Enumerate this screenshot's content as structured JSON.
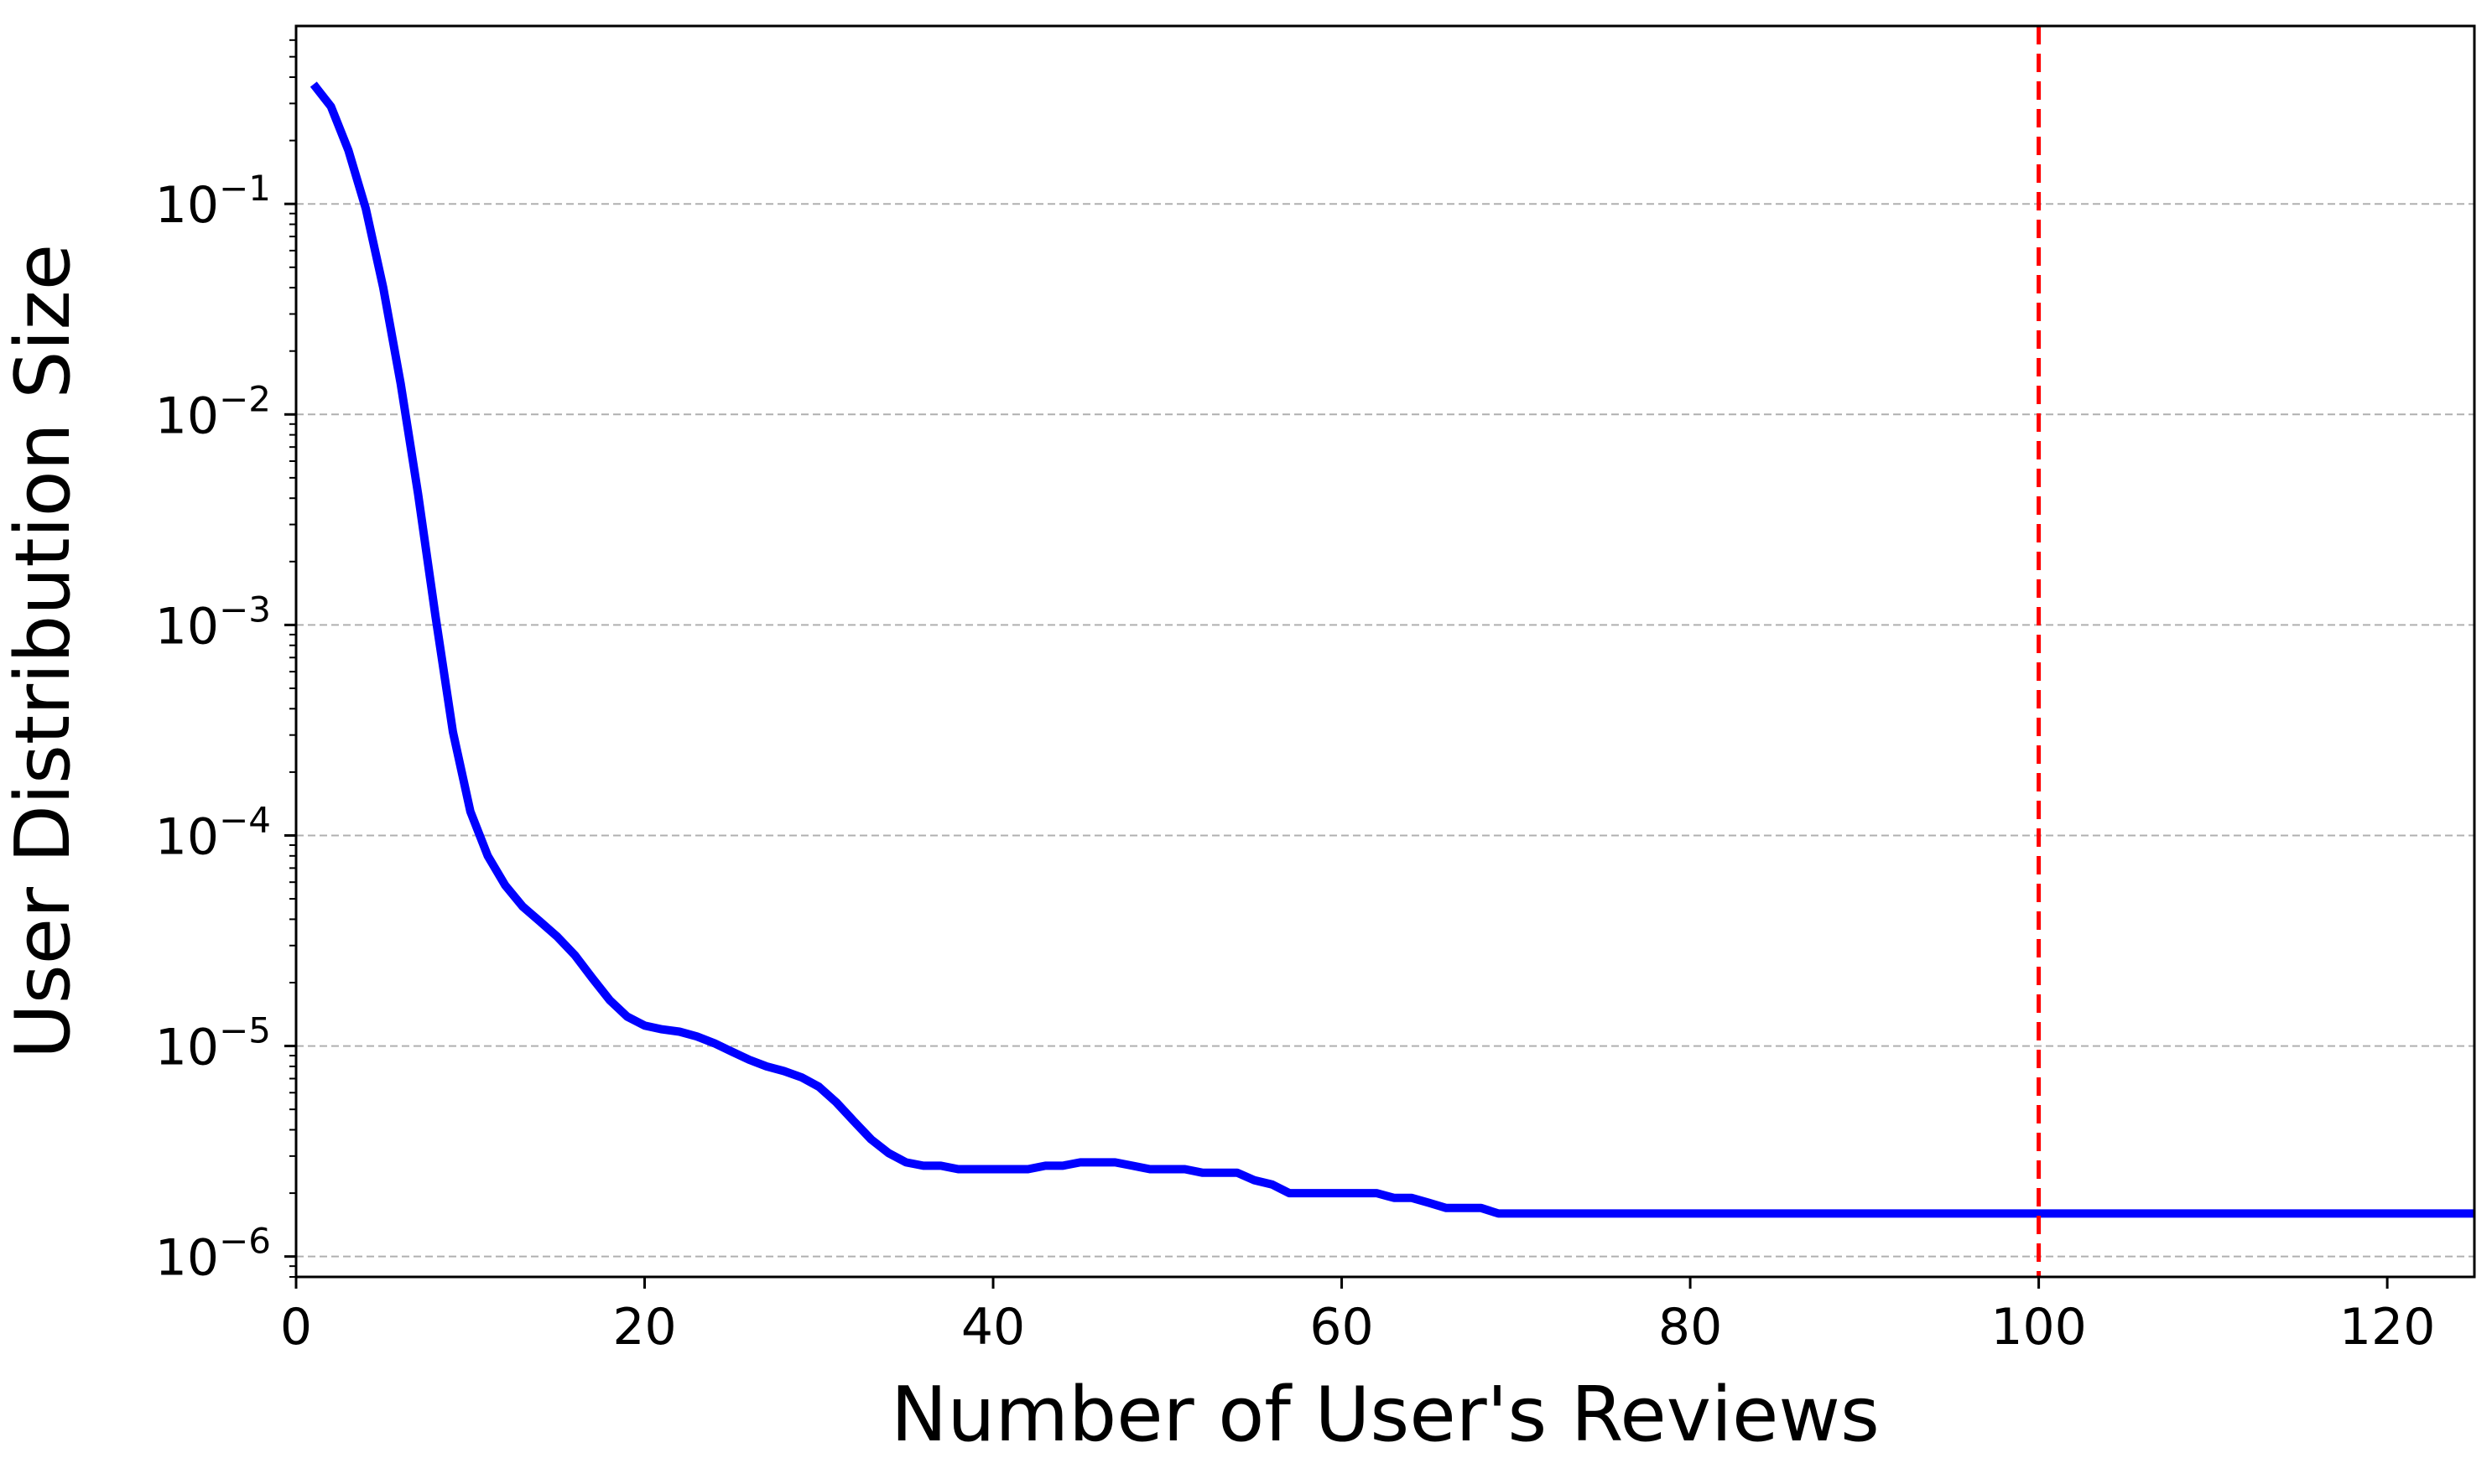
{
  "chart_data": {
    "type": "line",
    "title": "",
    "xlabel": "Number of User's Reviews",
    "ylabel": "User Distribution Size",
    "yscale": "log",
    "xlim": [
      0,
      125
    ],
    "ylim": [
      8e-07,
      0.7
    ],
    "grid": "horizontal dashed",
    "x_ticks": [
      0,
      20,
      40,
      60,
      80,
      100,
      120
    ],
    "x_tick_labels": [
      "0",
      "20",
      "40",
      "60",
      "80",
      "100",
      "120"
    ],
    "y_ticks": [
      1e-06,
      1e-05,
      0.0001,
      0.001,
      0.01,
      0.1
    ],
    "y_tick_labels": [
      {
        "base": "10",
        "exp": "−6"
      },
      {
        "base": "10",
        "exp": "−5"
      },
      {
        "base": "10",
        "exp": "−4"
      },
      {
        "base": "10",
        "exp": "−3"
      },
      {
        "base": "10",
        "exp": "−2"
      },
      {
        "base": "10",
        "exp": "−1"
      }
    ],
    "series": [
      {
        "color": "#0000ff",
        "x": [
          1,
          2,
          3,
          4,
          5,
          6,
          7,
          8,
          9,
          10,
          11,
          12,
          13,
          14,
          15,
          16,
          17,
          18,
          19,
          20,
          21,
          22,
          23,
          24,
          25,
          26,
          27,
          28,
          29,
          30,
          31,
          32,
          33,
          34,
          35,
          36,
          37,
          38,
          39,
          40,
          41,
          42,
          43,
          44,
          45,
          46,
          47,
          48,
          49,
          50,
          51,
          52,
          53,
          54,
          55,
          56,
          57,
          58,
          59,
          60,
          61,
          62,
          63,
          64,
          65,
          66,
          67,
          68,
          69,
          70,
          75,
          80,
          83,
          85,
          90,
          95,
          100,
          105,
          110,
          115,
          120,
          125
        ],
        "y": [
          0.37,
          0.29,
          0.18,
          0.095,
          0.04,
          0.014,
          0.0042,
          0.0011,
          0.00031,
          0.00013,
          8e-05,
          5.8e-05,
          4.6e-05,
          3.9e-05,
          3.3e-05,
          2.7e-05,
          2.1e-05,
          1.65e-05,
          1.38e-05,
          1.25e-05,
          1.2e-05,
          1.17e-05,
          1.11e-05,
          1.03e-05,
          9.4e-06,
          8.6e-06,
          8e-06,
          7.6e-06,
          7.1e-06,
          6.4e-06,
          5.4e-06,
          4.4e-06,
          3.6e-06,
          3.1e-06,
          2.8e-06,
          2.7e-06,
          2.7e-06,
          2.6e-06,
          2.6e-06,
          2.6e-06,
          2.6e-06,
          2.6e-06,
          2.7e-06,
          2.7e-06,
          2.8e-06,
          2.8e-06,
          2.8e-06,
          2.7e-06,
          2.6e-06,
          2.6e-06,
          2.6e-06,
          2.5e-06,
          2.5e-06,
          2.5e-06,
          2.3e-06,
          2.2e-06,
          2e-06,
          2e-06,
          2e-06,
          2e-06,
          2e-06,
          2e-06,
          1.9e-06,
          1.9e-06,
          1.8e-06,
          1.7e-06,
          1.7e-06,
          1.7e-06,
          1.6e-06,
          1.6e-06,
          1.6e-06,
          1.6e-06,
          1.6e-06,
          1.6e-06,
          1.6e-06,
          1.6e-06,
          1.6e-06,
          1.6e-06,
          1.6e-06,
          1.6e-06,
          1.6e-06,
          1.6e-06
        ]
      }
    ],
    "annotations": [
      {
        "type": "vline",
        "x": 100,
        "color": "#ff0000",
        "style": "dashed"
      }
    ]
  }
}
